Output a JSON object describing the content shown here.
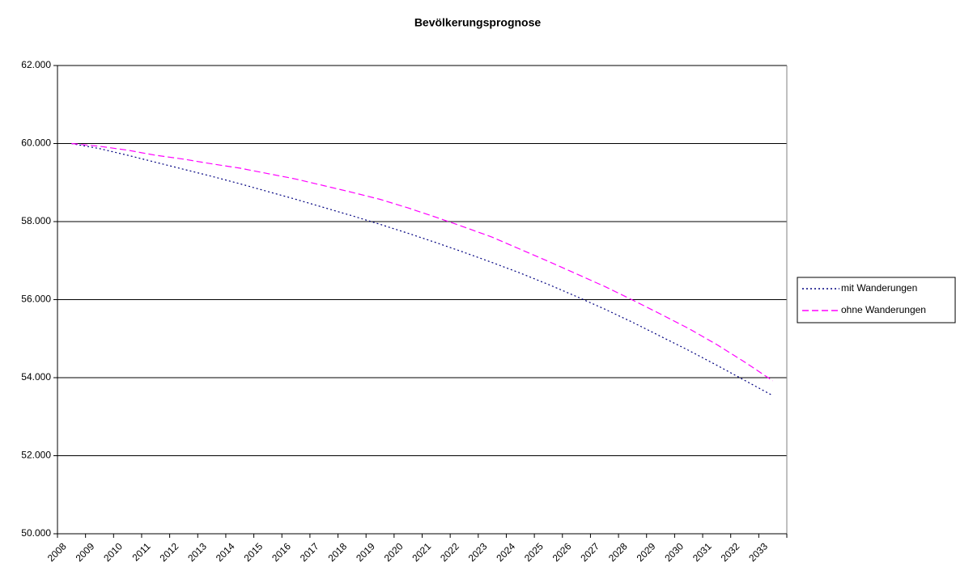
{
  "chart_data": {
    "type": "line",
    "title": "Bevölkerungsprognose",
    "categories": [
      "2008",
      "2009",
      "2010",
      "2011",
      "2012",
      "2013",
      "2014",
      "2015",
      "2016",
      "2017",
      "2018",
      "2019",
      "2020",
      "2021",
      "2022",
      "2023",
      "2024",
      "2025",
      "2026",
      "2027",
      "2028",
      "2029",
      "2030",
      "2031",
      "2032",
      "2033"
    ],
    "series": [
      {
        "name": "mit Wanderungen",
        "color": "#000080",
        "dash": "dotted",
        "values": [
          60000,
          59870,
          59700,
          59520,
          59340,
          59160,
          58970,
          58770,
          58570,
          58360,
          58150,
          57930,
          57700,
          57460,
          57210,
          56950,
          56680,
          56390,
          56080,
          55760,
          55420,
          55060,
          54700,
          54320,
          53930,
          53540
        ]
      },
      {
        "name": "ohne Wanderungen",
        "color": "#ff00ff",
        "dash": "dashed",
        "values": [
          60000,
          59930,
          59830,
          59700,
          59600,
          59480,
          59370,
          59230,
          59090,
          58920,
          58750,
          58570,
          58350,
          58110,
          57860,
          57600,
          57290,
          56980,
          56660,
          56340,
          55990,
          55630,
          55260,
          54850,
          54400,
          53920
        ]
      }
    ],
    "ylim": [
      50000,
      62000
    ],
    "yticks": [
      {
        "value": 50000,
        "label": "50.000"
      },
      {
        "value": 52000,
        "label": "52.000"
      },
      {
        "value": 54000,
        "label": "54.000"
      },
      {
        "value": 56000,
        "label": "56.000"
      },
      {
        "value": 58000,
        "label": "58.000"
      },
      {
        "value": 60000,
        "label": "60.000"
      },
      {
        "value": 62000,
        "label": "62.000"
      }
    ],
    "grid": true,
    "legend": "right"
  }
}
